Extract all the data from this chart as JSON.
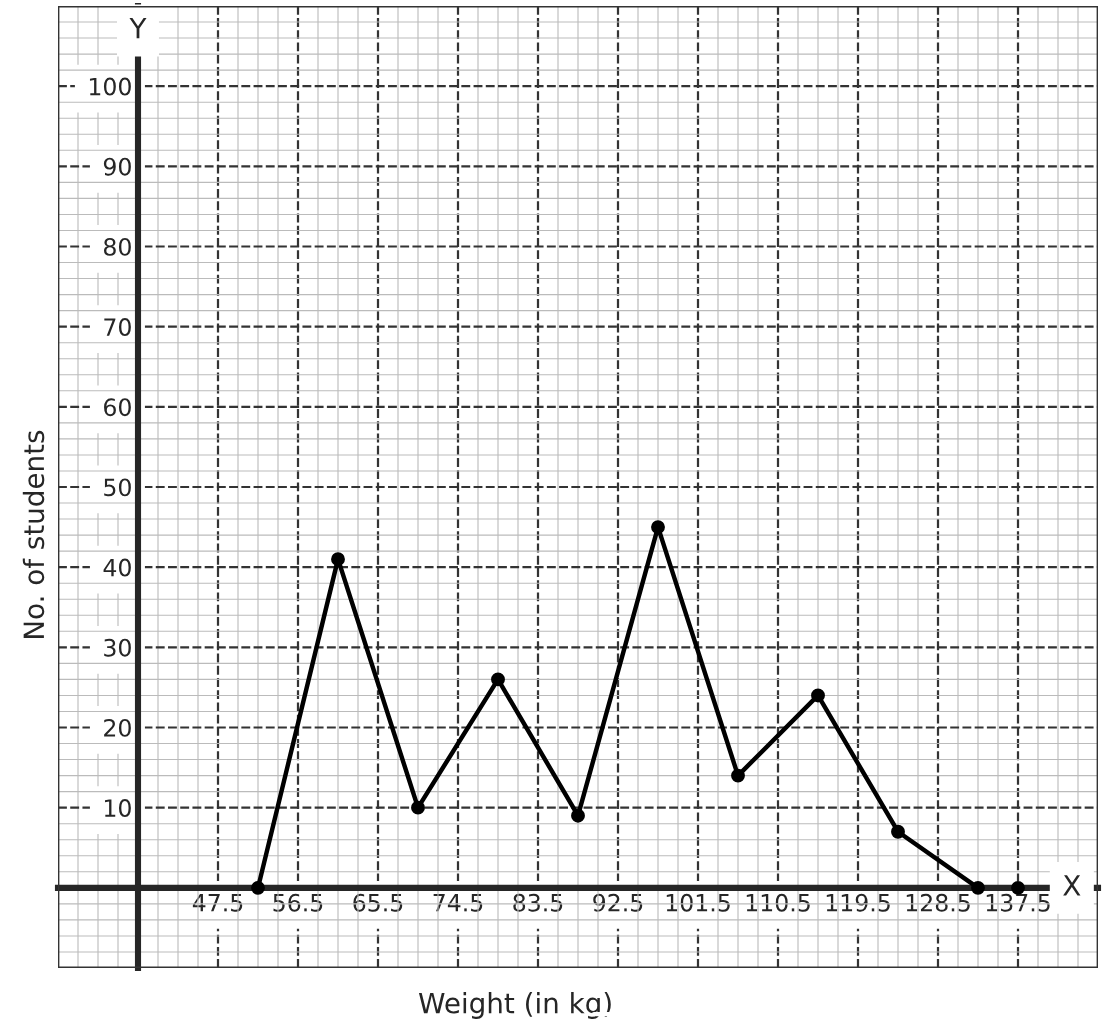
{
  "chart_data": {
    "type": "line",
    "xlabel": "Weight (in kg)",
    "ylabel": "No. of students",
    "annotations": [
      "X",
      "Y"
    ],
    "x": [
      52,
      61,
      70,
      79,
      88,
      97,
      106,
      115,
      124,
      133
    ],
    "series": [
      {
        "color": "#000000",
        "values": [
          0,
          41,
          10,
          26,
          9,
          45,
          14,
          24,
          7,
          0
        ]
      },
      {
        "type": "scatter",
        "color": "#000000",
        "x": [
          137.5
        ],
        "values": [
          0
        ]
      }
    ],
    "xlim": [
      29.5,
      146.5
    ],
    "ylim": [
      -10,
      110
    ],
    "xticks": [
      47.5,
      56.5,
      65.5,
      74.5,
      83.5,
      92.5,
      101.5,
      110.5,
      119.5,
      128.5,
      137.5
    ],
    "yticks": [
      10,
      20,
      30,
      40,
      50,
      60,
      70,
      80,
      90,
      100
    ],
    "grid": true,
    "marker": "circle",
    "line_style": "solid"
  }
}
